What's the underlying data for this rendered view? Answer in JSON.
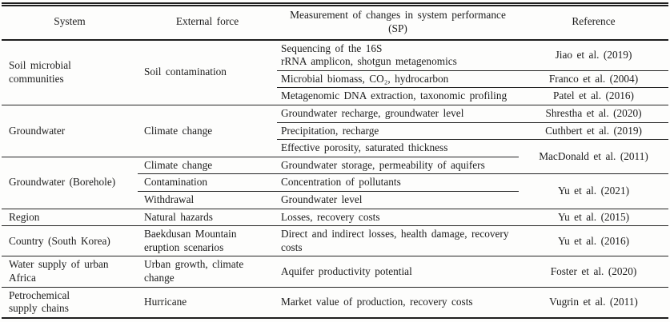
{
  "table": {
    "header": {
      "system": "System",
      "force": "External force",
      "measurement": "Measurement of changes in system performance (SP)",
      "reference": "Reference"
    },
    "groups": [
      {
        "system": "Soil microbial\ncommunities",
        "force": "Soil contamination",
        "entries": [
          {
            "m": "Sequencing of the 16S\nrRNA amplicon, shotgun metagenomics",
            "r": "Jiao et al. (2019)"
          },
          {
            "m": "Microbial biomass, CO₂, hydrocarbon",
            "r": "Franco et al. (2004)"
          },
          {
            "m": "Metagenomic DNA extraction, taxonomic profiling",
            "r": "Patel et al. (2016)"
          }
        ]
      },
      {
        "system": "Groundwater",
        "force": "Climate change",
        "entries": [
          {
            "m": "Groundwater recharge, groundwater level",
            "r": "Shrestha et al. (2020)"
          },
          {
            "m": "Precipitation, recharge",
            "r": "Cuthbert et al. (2019)"
          },
          {
            "m": "Effective porosity, saturated thickness",
            "r": "MacDonald et al. (2011)"
          }
        ]
      },
      {
        "system": "Groundwater (Borehole)",
        "entries": [
          {
            "force": "Climate change",
            "m": "Groundwater storage, permeability of aquifers"
          },
          {
            "force": "Contamination",
            "m": "Concentration of pollutants",
            "r": "Yu et al. (2021)"
          },
          {
            "force": "Withdrawal",
            "m": "Groundwater level"
          }
        ]
      },
      {
        "system": "Region",
        "force": "Natural hazards",
        "entries": [
          {
            "m": "Losses, recovery costs",
            "r": "Yu et al. (2015)"
          }
        ]
      },
      {
        "system": "Country (South Korea)",
        "force": "Baekdusan Mountain\neruption scenarios",
        "entries": [
          {
            "m": "Direct and indirect losses, health damage, recovery\ncosts",
            "r": "Yu et al. (2016)"
          }
        ]
      },
      {
        "system": "Water supply of urban\nAfrica",
        "force": "Urban growth, climate\nchange",
        "entries": [
          {
            "m": "Aquifer productivity potential",
            "r": "Foster et al. (2020)"
          }
        ]
      },
      {
        "system": "Petrochemical\nsupply chains",
        "force": "Hurricane",
        "entries": [
          {
            "m": "Market value of production, recovery costs",
            "r": "Vugrin et al. (2011)"
          }
        ]
      }
    ]
  }
}
